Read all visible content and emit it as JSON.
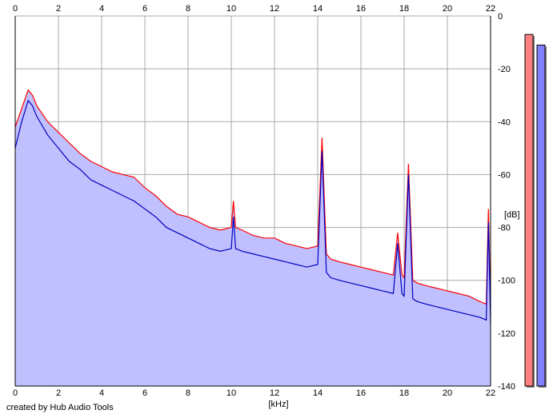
{
  "credit": "created by Hub Audio Tools",
  "colors": {
    "background": "#ffffff",
    "plot_fill": "#c0c0ff",
    "grid": "#aaaaaa",
    "left_channel": "#ff0000",
    "right_channel": "#0000c0",
    "meter_left": "#ff8080",
    "meter_right": "#8080ff"
  },
  "chart_data": {
    "type": "line",
    "xlabel": "[kHz]",
    "ylabel": "[dB]",
    "xlim": [
      0,
      22
    ],
    "ylim": [
      -140,
      0
    ],
    "x_ticks": [
      0,
      2,
      4,
      6,
      8,
      10,
      12,
      14,
      16,
      18,
      20,
      22
    ],
    "y_ticks": [
      0,
      -20,
      -40,
      -60,
      -80,
      -100,
      -120,
      -140
    ],
    "grid": true,
    "series": [
      {
        "color": "#ff0000",
        "x": [
          0,
          0.3,
          0.6,
          0.8,
          1.0,
          1.5,
          2.0,
          2.5,
          3.0,
          3.5,
          4.0,
          4.5,
          5.0,
          5.5,
          6.0,
          6.5,
          7.0,
          7.5,
          8.0,
          8.5,
          9.0,
          9.5,
          10.0,
          10.1,
          10.2,
          10.5,
          11.0,
          11.5,
          12.0,
          12.5,
          13.0,
          13.5,
          14.0,
          14.2,
          14.4,
          14.6,
          15.0,
          15.5,
          16.0,
          16.5,
          17.0,
          17.5,
          17.7,
          17.9,
          18.0,
          18.2,
          18.4,
          18.6,
          19.0,
          19.5,
          20.0,
          20.5,
          21.0,
          21.5,
          21.8,
          21.9,
          22.0
        ],
        "values": [
          -42,
          -35,
          -28,
          -30,
          -34,
          -40,
          -44,
          -48,
          -52,
          -55,
          -57,
          -59,
          -60,
          -61,
          -65,
          -68,
          -72,
          -75,
          -76,
          -78,
          -80,
          -81,
          -80,
          -70,
          -80,
          -81,
          -83,
          -84,
          -84,
          -86,
          -87,
          -88,
          -87,
          -46,
          -90,
          -92,
          -93,
          -94,
          -95,
          -96,
          -97,
          -98,
          -82,
          -98,
          -99,
          -56,
          -100,
          -101,
          -102,
          -103,
          -104,
          -105,
          -106,
          -108,
          -109,
          -73,
          -110
        ]
      },
      {
        "color": "#0000c0",
        "x": [
          0,
          0.3,
          0.6,
          0.8,
          1.0,
          1.5,
          2.0,
          2.5,
          3.0,
          3.5,
          4.0,
          4.5,
          5.0,
          5.5,
          6.0,
          6.5,
          7.0,
          7.5,
          8.0,
          8.5,
          9.0,
          9.5,
          10.0,
          10.1,
          10.2,
          10.5,
          11.0,
          11.5,
          12.0,
          12.5,
          13.0,
          13.5,
          14.0,
          14.2,
          14.4,
          14.6,
          15.0,
          15.5,
          16.0,
          16.5,
          17.0,
          17.5,
          17.7,
          17.9,
          18.0,
          18.2,
          18.4,
          18.6,
          19.0,
          19.5,
          20.0,
          20.5,
          21.0,
          21.5,
          21.8,
          21.9,
          22.0
        ],
        "values": [
          -50,
          -40,
          -32,
          -34,
          -38,
          -45,
          -50,
          -55,
          -58,
          -62,
          -64,
          -66,
          -68,
          -70,
          -73,
          -76,
          -80,
          -82,
          -84,
          -86,
          -88,
          -89,
          -88,
          -76,
          -88,
          -89,
          -90,
          -91,
          -92,
          -93,
          -94,
          -95,
          -94,
          -51,
          -97,
          -99,
          -100,
          -101,
          -102,
          -103,
          -104,
          -105,
          -86,
          -105,
          -106,
          -60,
          -107,
          -108,
          -109,
          -110,
          -111,
          -112,
          -113,
          -114,
          -115,
          -78,
          -116
        ]
      }
    ],
    "level_meters": [
      {
        "color": "#ff8080",
        "level_db": -7
      },
      {
        "color": "#8080ff",
        "level_db": -11
      }
    ]
  }
}
